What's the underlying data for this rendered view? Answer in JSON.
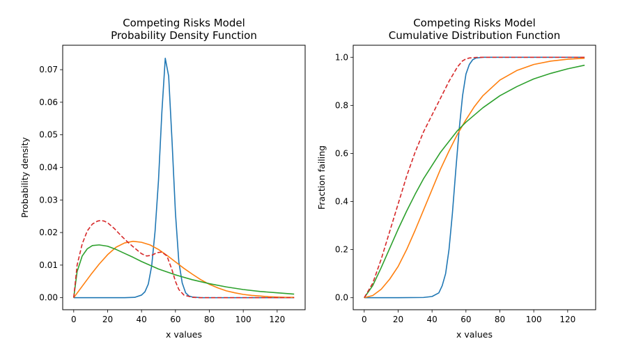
{
  "chart_data": [
    {
      "type": "line",
      "title_line1": "Competing Risks Model",
      "title_line2": "Probability Density Function",
      "xlabel": "x values",
      "ylabel": "Probability density",
      "xlim": [
        -6.5,
        136.5
      ],
      "ylim": [
        -0.0037,
        0.0775
      ],
      "xticks": [
        0,
        20,
        40,
        60,
        80,
        100,
        120
      ],
      "yticks": [
        0.0,
        0.01,
        0.02,
        0.03,
        0.04,
        0.05,
        0.06,
        0.07
      ],
      "ytick_labels": [
        "0.00",
        "0.01",
        "0.02",
        "0.03",
        "0.04",
        "0.05",
        "0.06",
        "0.07"
      ],
      "grid": false,
      "series": [
        {
          "color": "#1f77b4",
          "dash": "solid",
          "x": [
            0,
            10,
            20,
            30,
            36,
            40,
            42,
            44,
            46,
            48,
            50,
            52,
            54,
            56,
            58,
            60,
            62,
            64,
            66,
            68,
            70,
            75,
            80,
            130
          ],
          "y": [
            0,
            0,
            0,
            0,
            0.0001,
            0.0008,
            0.0018,
            0.0042,
            0.0098,
            0.0205,
            0.036,
            0.057,
            0.0735,
            0.068,
            0.048,
            0.026,
            0.011,
            0.0045,
            0.0015,
            0.0005,
            0.0002,
            0.0,
            0,
            0
          ]
        },
        {
          "color": "#ff7f0e",
          "dash": "solid",
          "x": [
            0,
            5,
            10,
            15,
            20,
            25,
            30,
            35,
            40,
            45,
            50,
            55,
            60,
            65,
            70,
            75,
            80,
            85,
            90,
            95,
            100,
            105,
            110,
            115,
            120,
            125,
            130
          ],
          "y": [
            0,
            0.0035,
            0.007,
            0.0103,
            0.0132,
            0.0155,
            0.0168,
            0.0173,
            0.017,
            0.0162,
            0.0148,
            0.013,
            0.011,
            0.009,
            0.0072,
            0.0055,
            0.0041,
            0.003,
            0.0021,
            0.0015,
            0.001,
            0.0007,
            0.0005,
            0.0003,
            0.0002,
            0.0001,
            0.0001
          ]
        },
        {
          "color": "#2ca02c",
          "dash": "solid",
          "x": [
            0,
            2,
            5,
            8,
            11,
            15,
            20,
            25,
            30,
            35,
            40,
            50,
            60,
            70,
            80,
            90,
            100,
            110,
            120,
            130
          ],
          "y": [
            0,
            0.008,
            0.0128,
            0.015,
            0.016,
            0.0162,
            0.0158,
            0.0148,
            0.0136,
            0.0124,
            0.0111,
            0.0088,
            0.007,
            0.0055,
            0.0043,
            0.0033,
            0.0025,
            0.0019,
            0.0015,
            0.0011
          ]
        },
        {
          "color": "#d62728",
          "dash": "dashed",
          "x": [
            0,
            2,
            5,
            8,
            11,
            14,
            16,
            18,
            20,
            24,
            28,
            32,
            36,
            40,
            43,
            46,
            49,
            52,
            55,
            58,
            60,
            62,
            65,
            70,
            75,
            80,
            130
          ],
          "y": [
            0,
            0.01,
            0.0165,
            0.0205,
            0.0226,
            0.0235,
            0.0237,
            0.0235,
            0.023,
            0.0212,
            0.019,
            0.017,
            0.0152,
            0.0135,
            0.0128,
            0.013,
            0.0138,
            0.014,
            0.0128,
            0.0085,
            0.005,
            0.0025,
            0.0008,
            0.0001,
            0,
            0,
            0
          ]
        }
      ]
    },
    {
      "type": "line",
      "title_line1": "Competing Risks Model",
      "title_line2": "Cumulative Distribution Function",
      "xlabel": "x values",
      "ylabel": "Fraction failing",
      "xlim": [
        -6.5,
        136.5
      ],
      "ylim": [
        -0.05,
        1.05
      ],
      "xticks": [
        0,
        20,
        40,
        60,
        80,
        100,
        120
      ],
      "yticks": [
        0.0,
        0.2,
        0.4,
        0.6,
        0.8,
        1.0
      ],
      "ytick_labels": [
        "0.0",
        "0.2",
        "0.4",
        "0.6",
        "0.8",
        "1.0"
      ],
      "grid": false,
      "series": [
        {
          "color": "#1f77b4",
          "dash": "solid",
          "x": [
            0,
            20,
            35,
            40,
            44,
            46,
            48,
            50,
            52,
            54,
            56,
            58,
            60,
            62,
            64,
            66,
            70,
            130
          ],
          "y": [
            0,
            0,
            0.001,
            0.005,
            0.02,
            0.05,
            0.1,
            0.2,
            0.35,
            0.53,
            0.7,
            0.84,
            0.93,
            0.97,
            0.99,
            0.997,
            1.0,
            1.0
          ]
        },
        {
          "color": "#ff7f0e",
          "dash": "solid",
          "x": [
            0,
            5,
            10,
            15,
            20,
            25,
            30,
            35,
            40,
            45,
            50,
            55,
            60,
            65,
            70,
            80,
            90,
            100,
            110,
            120,
            130
          ],
          "y": [
            0,
            0.009,
            0.035,
            0.077,
            0.13,
            0.2,
            0.28,
            0.365,
            0.45,
            0.535,
            0.61,
            0.68,
            0.74,
            0.795,
            0.84,
            0.905,
            0.945,
            0.97,
            0.984,
            0.992,
            0.996
          ]
        },
        {
          "color": "#2ca02c",
          "dash": "solid",
          "x": [
            0,
            5,
            10,
            15,
            20,
            25,
            30,
            35,
            40,
            45,
            50,
            55,
            60,
            70,
            80,
            90,
            100,
            110,
            120,
            130
          ],
          "y": [
            0,
            0.05,
            0.125,
            0.205,
            0.285,
            0.36,
            0.43,
            0.495,
            0.55,
            0.605,
            0.65,
            0.695,
            0.73,
            0.79,
            0.84,
            0.878,
            0.91,
            0.933,
            0.952,
            0.967
          ]
        },
        {
          "color": "#d62728",
          "dash": "dashed",
          "x": [
            0,
            5,
            10,
            15,
            20,
            25,
            30,
            35,
            40,
            45,
            50,
            55,
            58,
            60,
            62,
            65,
            70,
            75,
            80,
            130
          ],
          "y": [
            0,
            0.06,
            0.16,
            0.275,
            0.39,
            0.505,
            0.605,
            0.69,
            0.76,
            0.83,
            0.9,
            0.96,
            0.985,
            0.993,
            0.997,
            0.999,
            1.0,
            1.0,
            1.0,
            1.0
          ]
        }
      ]
    }
  ]
}
